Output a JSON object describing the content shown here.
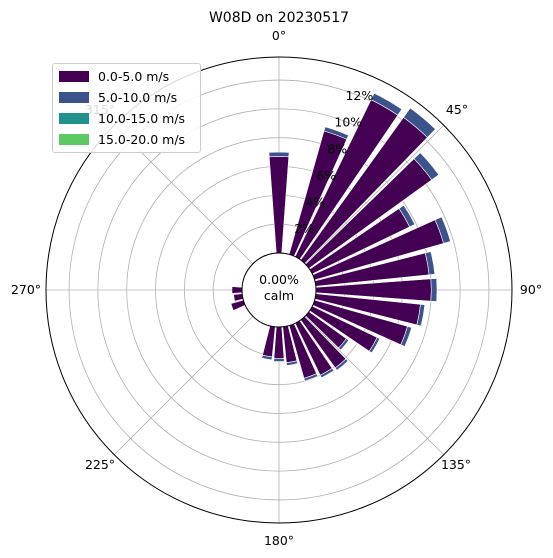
{
  "chart_data": {
    "type": "windrose",
    "title": "W08D on 20230517",
    "direction_labels": [
      "0°",
      "45°",
      "90°",
      "135°",
      "180°",
      "225°",
      "270°",
      "315°"
    ],
    "radial_tick_labels": [
      "2%",
      "4%",
      "6%",
      "8%",
      "10%",
      "12%"
    ],
    "radial_ticks": [
      2,
      4,
      6,
      8,
      10,
      12
    ],
    "rmax": 13.6,
    "calm_label": "0.00%\ncalm",
    "legend_placement": "upper-left",
    "sectors_deg": [
      0,
      10,
      20,
      30,
      40,
      50,
      60,
      70,
      80,
      90,
      100,
      110,
      120,
      130,
      140,
      150,
      160,
      170,
      180,
      190,
      200,
      210,
      220,
      230,
      240,
      250,
      260,
      270,
      280,
      290,
      300,
      310,
      320,
      330,
      340,
      350
    ],
    "series": [
      {
        "name": "0.0-5.0 m/s",
        "color": "#440154",
        "values": [
          6.7,
          0.0,
          8.9,
          12.1,
          12.2,
          10.5,
          7.5,
          9.3,
          7.9,
          8.0,
          7.3,
          6.7,
          5.0,
          3.2,
          4.1,
          4.0,
          3.8,
          2.5,
          2.2,
          2.1,
          0.0,
          0.0,
          0.0,
          0.0,
          0.0,
          0.0,
          0.0,
          0.0,
          0.0,
          0.0,
          0.0,
          0.0,
          0.0,
          0.0,
          0.0,
          0.0
        ]
      },
      {
        "name": "5.0-10.0 m/s",
        "color": "#3b528b",
        "values": [
          0.3,
          0.0,
          0.3,
          0.5,
          0.8,
          0.6,
          0.4,
          0.5,
          0.4,
          0.4,
          0.3,
          0.3,
          0.2,
          0.2,
          0.2,
          0.2,
          0.2,
          0.2,
          0.2,
          0.2,
          0.0,
          0.0,
          0.0,
          0.0,
          0.0,
          0.0,
          0.0,
          0.0,
          0.0,
          0.0,
          0.0,
          0.0,
          0.0,
          0.0,
          0.0,
          0.0
        ]
      },
      {
        "name": "10.0-15.0 m/s",
        "color": "#21918c",
        "values": [
          0,
          0,
          0,
          0,
          0,
          0,
          0,
          0,
          0,
          0,
          0,
          0,
          0,
          0,
          0,
          0,
          0,
          0,
          0,
          0,
          0,
          0,
          0,
          0,
          0,
          0,
          0,
          0,
          0,
          0,
          0,
          0,
          0,
          0,
          0,
          0
        ]
      },
      {
        "name": "15.0-20.0 m/s",
        "color": "#5ec962",
        "values": [
          0,
          0,
          0,
          0,
          0,
          0,
          0,
          0,
          0,
          0,
          0,
          0,
          0,
          0,
          0,
          0,
          0,
          0,
          0,
          0,
          0,
          0,
          0,
          0,
          0,
          0,
          0,
          0,
          0,
          0,
          0,
          0,
          0,
          0,
          0,
          0
        ]
      }
    ],
    "small_bars_deg": [
      250,
      260,
      270
    ],
    "small_bars_values": [
      0.9,
      0.6,
      0.7
    ],
    "grid": true
  }
}
